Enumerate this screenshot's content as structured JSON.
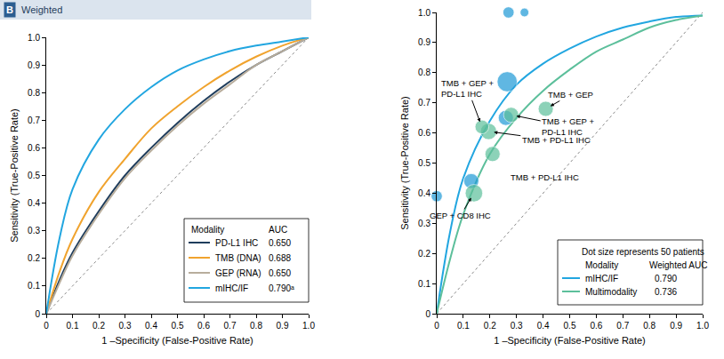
{
  "chart_data": [
    {
      "type": "line",
      "panel": "B",
      "title": "Weighted",
      "x_label": "1 –Specificity (False-Positive Rate)",
      "y_label": "Sensitivity (True-Positive Rate)",
      "xlim": [
        0,
        1
      ],
      "ylim": [
        0,
        1
      ],
      "xticks": [
        0,
        0.1,
        0.2,
        0.3,
        0.4,
        0.5,
        0.6,
        0.7,
        0.8,
        0.9,
        {
          "value": 1,
          "label": "1.0"
        }
      ],
      "yticks": [
        0,
        0.1,
        0.2,
        0.3,
        0.4,
        0.5,
        0.6,
        0.7,
        0.8,
        0.9,
        {
          "value": 1,
          "label": "1.0"
        }
      ],
      "grid": false,
      "legend": "bottom-right",
      "legend_headers": [
        "Modality",
        "AUC"
      ],
      "reference_line": {
        "x": [
          0,
          1
        ],
        "y": [
          0,
          1
        ],
        "line_style": "dotted"
      },
      "series": [
        {
          "name": "PD-L1 IHC",
          "auc": "0.650",
          "color": "#1f3d5c",
          "type": "line",
          "x": [
            0,
            0.05,
            0.1,
            0.2,
            0.3,
            0.4,
            0.5,
            0.6,
            0.7,
            0.8,
            0.9,
            1
          ],
          "y": [
            0,
            0.12,
            0.22,
            0.37,
            0.5,
            0.6,
            0.69,
            0.77,
            0.84,
            0.9,
            0.95,
            1
          ]
        },
        {
          "name": "TMB (DNA)",
          "auc": "0.688",
          "color": "#f0a32e",
          "type": "line",
          "x": [
            0,
            0.05,
            0.1,
            0.2,
            0.3,
            0.4,
            0.5,
            0.6,
            0.7,
            0.8,
            0.9,
            1
          ],
          "y": [
            0,
            0.15,
            0.27,
            0.44,
            0.56,
            0.67,
            0.75,
            0.82,
            0.88,
            0.93,
            0.97,
            1
          ]
        },
        {
          "name": "GEP (RNA)",
          "auc": "0.650",
          "color": "#b8ad9c",
          "type": "line",
          "x": [
            0,
            0.05,
            0.1,
            0.2,
            0.3,
            0.4,
            0.5,
            0.6,
            0.7,
            0.8,
            0.9,
            1
          ],
          "y": [
            0,
            0.11,
            0.21,
            0.36,
            0.49,
            0.59,
            0.68,
            0.76,
            0.83,
            0.9,
            0.95,
            1
          ]
        },
        {
          "name": "mIHC/IF",
          "auc": "0.790ᵃ",
          "color": "#22a6e0",
          "type": "line",
          "x": [
            0,
            0.05,
            0.1,
            0.2,
            0.3,
            0.4,
            0.5,
            0.6,
            0.7,
            0.8,
            0.9,
            1
          ],
          "y": [
            0,
            0.27,
            0.45,
            0.63,
            0.74,
            0.82,
            0.88,
            0.92,
            0.95,
            0.97,
            0.985,
            1
          ]
        }
      ]
    },
    {
      "type": "line",
      "x_label": "1 –Specificity (False-Positive Rate)",
      "y_label": "Sensitivity (True-Positive Rate)",
      "xlim": [
        0,
        1
      ],
      "ylim": [
        0,
        1
      ],
      "xticks": [
        0,
        0.1,
        0.2,
        0.3,
        0.4,
        0.5,
        0.6,
        0.7,
        0.8,
        0.9,
        {
          "value": 1,
          "label": "1.0"
        }
      ],
      "yticks": [
        0,
        0.1,
        0.2,
        0.3,
        0.4,
        0.5,
        0.6,
        0.7,
        0.8,
        0.9,
        {
          "value": 1,
          "label": "1.0"
        }
      ],
      "grid": false,
      "legend": "bottom-right",
      "legend_headers": [
        "Modality",
        "Weighted AUC"
      ],
      "size_legend": {
        "label": "Dot size represents 50 patients",
        "value": 50
      },
      "reference_line": {
        "x": [
          0,
          1
        ],
        "y": [
          0,
          1
        ],
        "line_style": "dotted"
      },
      "series": [
        {
          "name": "mIHC/IF",
          "auc": "0.790",
          "color": "#22a6e0",
          "type": "line",
          "x": [
            0,
            0.05,
            0.1,
            0.2,
            0.3,
            0.4,
            0.5,
            0.6,
            0.7,
            0.8,
            0.9,
            1
          ],
          "y": [
            0,
            0.27,
            0.45,
            0.64,
            0.76,
            0.83,
            0.88,
            0.92,
            0.95,
            0.97,
            0.985,
            0.99
          ]
        },
        {
          "name": "Multimodality",
          "auc": "0.736",
          "color": "#5cbf9b",
          "type": "line",
          "x": [
            0,
            0.05,
            0.1,
            0.2,
            0.3,
            0.4,
            0.5,
            0.6,
            0.7,
            0.8,
            0.9,
            1
          ],
          "y": [
            0,
            0.18,
            0.33,
            0.53,
            0.65,
            0.74,
            0.81,
            0.87,
            0.91,
            0.95,
            0.975,
            0.99
          ]
        },
        {
          "name": "mIHC/IF",
          "type": "scatter",
          "color": "#1e9ad6",
          "x": [
            0,
            0.13,
            0.26,
            0.265,
            0.27,
            0.33
          ],
          "y": [
            0.39,
            0.44,
            0.65,
            0.77,
            1.0,
            1.0
          ],
          "size": [
            33,
            60,
            60,
            106,
            33,
            20
          ]
        },
        {
          "name": "Multimodality",
          "type": "scatter",
          "color": "#5cbf9b",
          "x": [
            0.14,
            0.21,
            0.195,
            0.17,
            0.28,
            0.41
          ],
          "y": [
            0.4,
            0.53,
            0.605,
            0.62,
            0.66,
            0.68
          ],
          "size": [
            80,
            60,
            70,
            50,
            60,
            60
          ],
          "labels": [
            [
              "GEP + CD8 IHC"
            ],
            [
              "TMB + PD-L1 IHC"
            ],
            [
              "TMB + PD-L1 IHC"
            ],
            [
              "TMB + GEP +",
              "PD-L1 IHC"
            ],
            [
              "TMB + GEP +",
              "PD-L1 IHC"
            ],
            [
              "TMB + GEP"
            ]
          ]
        }
      ]
    }
  ]
}
